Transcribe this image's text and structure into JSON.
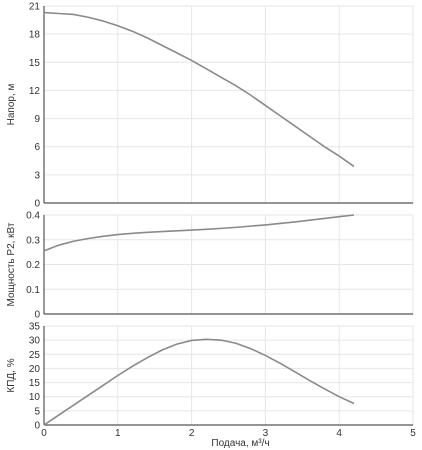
{
  "chart_data": [
    {
      "type": "line",
      "ylabel": "Напор, м",
      "xlim": [
        0,
        5
      ],
      "ylim": [
        0,
        21
      ],
      "yticks": [
        0,
        3,
        6,
        9,
        12,
        15,
        18,
        21
      ],
      "grid": true,
      "color": "#8a8a8a",
      "x": [
        0,
        0.2,
        0.4,
        0.6,
        0.8,
        1.0,
        1.2,
        1.4,
        1.6,
        1.8,
        2.0,
        2.2,
        2.4,
        2.6,
        2.8,
        3.0,
        3.2,
        3.4,
        3.6,
        3.8,
        4.0,
        4.2
      ],
      "y": [
        20.3,
        20.2,
        20.1,
        19.8,
        19.4,
        18.9,
        18.3,
        17.6,
        16.8,
        16.0,
        15.2,
        14.3,
        13.4,
        12.5,
        11.5,
        10.4,
        9.3,
        8.2,
        7.1,
        6.0,
        5.0,
        3.9
      ]
    },
    {
      "type": "line",
      "ylabel": "Мощность P2, кВт",
      "xlim": [
        0,
        5
      ],
      "ylim": [
        0,
        0.4
      ],
      "yticks": [
        0,
        0.1,
        0.2,
        0.3,
        0.4
      ],
      "grid": true,
      "color": "#8a8a8a",
      "x": [
        0,
        0.2,
        0.4,
        0.6,
        0.8,
        1.0,
        1.2,
        1.4,
        1.6,
        1.8,
        2.0,
        2.2,
        2.4,
        2.6,
        2.8,
        3.0,
        3.2,
        3.4,
        3.6,
        3.8,
        4.0,
        4.2
      ],
      "y": [
        0.255,
        0.278,
        0.294,
        0.305,
        0.314,
        0.321,
        0.326,
        0.33,
        0.333,
        0.336,
        0.339,
        0.342,
        0.346,
        0.35,
        0.355,
        0.36,
        0.366,
        0.372,
        0.379,
        0.386,
        0.393,
        0.4
      ]
    },
    {
      "type": "line",
      "ylabel": "КПД, %",
      "xlabel": "Подача, м³/ч",
      "xlim": [
        0,
        5
      ],
      "ylim": [
        0,
        35
      ],
      "yticks": [
        0,
        5,
        10,
        15,
        20,
        25,
        30,
        35
      ],
      "xticks": [
        0,
        1,
        2,
        3,
        4,
        5
      ],
      "grid": true,
      "color": "#8a8a8a",
      "x": [
        0,
        0.2,
        0.4,
        0.6,
        0.8,
        1.0,
        1.2,
        1.4,
        1.6,
        1.8,
        2.0,
        2.2,
        2.4,
        2.6,
        2.8,
        3.0,
        3.2,
        3.4,
        3.6,
        3.8,
        4.0,
        4.2
      ],
      "y": [
        0,
        3.5,
        7.0,
        10.5,
        14.0,
        17.5,
        20.8,
        23.8,
        26.5,
        28.6,
        29.9,
        30.3,
        30.0,
        28.9,
        27.0,
        24.6,
        21.8,
        18.8,
        15.7,
        12.8,
        10.0,
        7.6
      ]
    }
  ]
}
